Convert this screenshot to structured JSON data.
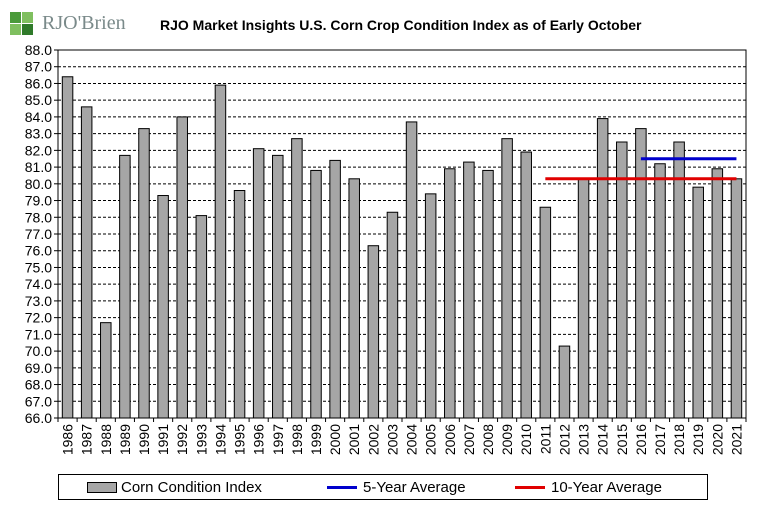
{
  "header": {
    "logo_text": "RJO'Brien",
    "title": "RJO Market Insights U.S. Corn Crop Condition Index as of Early October"
  },
  "colors": {
    "bar_fill": "#a6a6a6",
    "five_year": "#0000cc",
    "ten_year": "#e00000",
    "logo_green": "#4a9a3a"
  },
  "chart_data": {
    "type": "bar",
    "title": "RJO Market Insights U.S. Corn Crop Condition Index as of Early October",
    "categories": [
      "1986",
      "1987",
      "1988",
      "1989",
      "1990",
      "1991",
      "1992",
      "1993",
      "1994",
      "1995",
      "1996",
      "1997",
      "1998",
      "1999",
      "2000",
      "2001",
      "2002",
      "2003",
      "2004",
      "2005",
      "2006",
      "2007",
      "2008",
      "2009",
      "2010",
      "2011",
      "2012",
      "2013",
      "2014",
      "2015",
      "2016",
      "2017",
      "2018",
      "2019",
      "2020",
      "2021"
    ],
    "series": [
      {
        "name": "Corn Condition Index",
        "values": [
          86.4,
          84.6,
          71.7,
          81.7,
          83.3,
          79.3,
          84.0,
          78.1,
          85.9,
          79.6,
          82.1,
          81.7,
          82.7,
          80.8,
          81.4,
          80.3,
          76.3,
          78.3,
          83.7,
          79.4,
          80.9,
          81.3,
          80.8,
          82.7,
          81.9,
          78.6,
          70.3,
          80.3,
          83.9,
          82.5,
          83.3,
          81.2,
          82.5,
          79.8,
          80.9,
          80.3
        ]
      }
    ],
    "lines": [
      {
        "name": "5-Year Average",
        "value": 81.5,
        "from": "2016",
        "to": "2021"
      },
      {
        "name": "10-Year Average",
        "value": 80.3,
        "from": "2011",
        "to": "2021"
      }
    ],
    "ylim": [
      66.0,
      88.0
    ],
    "ytick_step": 1.0,
    "ytick_labels": [
      "66.0",
      "67.0",
      "68.0",
      "69.0",
      "70.0",
      "71.0",
      "72.0",
      "73.0",
      "74.0",
      "75.0",
      "76.0",
      "77.0",
      "78.0",
      "79.0",
      "80.0",
      "81.0",
      "82.0",
      "83.0",
      "84.0",
      "85.0",
      "86.0",
      "87.0",
      "88.0"
    ],
    "grid": true,
    "legend_position": "bottom"
  },
  "legend": {
    "bar_label": "Corn Condition Index",
    "five_label": "5-Year Average",
    "ten_label": "10-Year Average"
  }
}
